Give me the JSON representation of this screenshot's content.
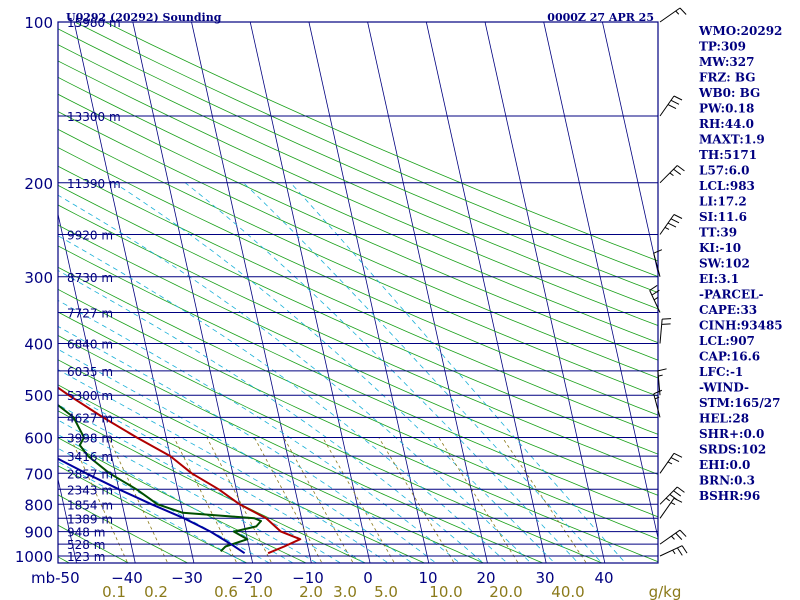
{
  "title_left": "U0292 (20292) Sounding",
  "title_right": "0000Z 27 APR 25",
  "chart_data": {
    "type": "line",
    "chart_kind": "skew-T log-p sounding",
    "p_range": [
      100,
      1000
    ],
    "t_range": [
      -50,
      50
    ],
    "pressure_ticks": [
      100,
      200,
      300,
      400,
      500,
      600,
      700,
      800,
      900,
      1000
    ],
    "temp_ticks": [
      -50,
      -40,
      -30,
      -20,
      -10,
      0,
      10,
      20,
      30,
      40
    ],
    "temp_tick_labels": [
      "mb-50",
      "−40",
      "−30",
      "−20",
      "−10",
      "0",
      "10",
      "20",
      "30",
      "40"
    ],
    "mixing_ratio_labels": [
      {
        "label": "0.1",
        "w": 0.1
      },
      {
        "label": "0.2",
        "w": 0.2
      },
      {
        "label": "0.6",
        "w": 0.6
      },
      {
        "label": "1.0",
        "w": 1.0
      },
      {
        "label": "2.0",
        "w": 2.0
      },
      {
        "label": "3.0",
        "w": 3.0
      },
      {
        "label": "5.0",
        "w": 5.0
      },
      {
        "label": "10.0",
        "w": 10.0
      },
      {
        "label": "20.0",
        "w": 20.0
      },
      {
        "label": "40.0",
        "w": 40.0
      },
      {
        "label": "g/kg",
        "w": null
      }
    ],
    "height_levels": [
      {
        "p": 100,
        "label": "15980 m"
      },
      {
        "p": 150,
        "label": "13300 m"
      },
      {
        "p": 200,
        "label": "11390 m"
      },
      {
        "p": 250,
        "label": "9920 m"
      },
      {
        "p": 300,
        "label": "8730 m"
      },
      {
        "p": 350,
        "label": "7727 m"
      },
      {
        "p": 400,
        "label": "6840 m"
      },
      {
        "p": 450,
        "label": "6035 m"
      },
      {
        "p": 500,
        "label": "5300 m"
      },
      {
        "p": 550,
        "label": "4627 m"
      },
      {
        "p": 600,
        "label": "3998 m"
      },
      {
        "p": 650,
        "label": "3416 m"
      },
      {
        "p": 700,
        "label": "2857 m"
      },
      {
        "p": 750,
        "label": "2343 m"
      },
      {
        "p": 800,
        "label": "1854 m"
      },
      {
        "p": 850,
        "label": "1389 m"
      },
      {
        "p": 900,
        "label": "948 m"
      },
      {
        "p": 950,
        "label": "528 m"
      },
      {
        "p": 1000,
        "label": "123 m"
      }
    ],
    "series": [
      {
        "role": "temperature",
        "color": "#b00000",
        "points": [
          [
            988,
            -17
          ],
          [
            960,
            -14
          ],
          [
            930,
            -11
          ],
          [
            900,
            -14
          ],
          [
            875,
            -15
          ],
          [
            850,
            -16
          ],
          [
            800,
            -20
          ],
          [
            750,
            -23
          ],
          [
            700,
            -27
          ],
          [
            650,
            -30
          ],
          [
            600,
            -35
          ],
          [
            550,
            -40
          ],
          [
            500,
            -45
          ],
          [
            450,
            -50
          ],
          [
            400,
            -56
          ],
          [
            350,
            -61
          ],
          [
            320,
            -65
          ],
          [
            300,
            -66
          ],
          [
            280,
            -63
          ],
          [
            250,
            -55
          ],
          [
            220,
            -47
          ],
          [
            200,
            -42
          ],
          [
            180,
            -40
          ],
          [
            150,
            -38
          ],
          [
            100,
            -42
          ]
        ]
      },
      {
        "role": "dewpoint",
        "color": "#005000",
        "points": [
          [
            980,
            -25
          ],
          [
            960,
            -24
          ],
          [
            930,
            -20
          ],
          [
            900,
            -22
          ],
          [
            880,
            -18
          ],
          [
            860,
            -17
          ],
          [
            850,
            -18
          ],
          [
            830,
            -30
          ],
          [
            800,
            -34
          ],
          [
            750,
            -37
          ],
          [
            700,
            -41
          ],
          [
            650,
            -44
          ],
          [
            620,
            -45
          ],
          [
            600,
            -44
          ],
          [
            550,
            -45
          ],
          [
            500,
            -49
          ],
          [
            450,
            -54
          ],
          [
            400,
            -60
          ],
          [
            350,
            -65
          ],
          [
            320,
            -70
          ],
          [
            300,
            -72
          ],
          [
            270,
            -69
          ],
          [
            250,
            -64
          ],
          [
            220,
            -59
          ],
          [
            200,
            -54
          ],
          [
            185,
            -56
          ],
          [
            150,
            -52
          ],
          [
            100,
            -55
          ]
        ]
      },
      {
        "role": "parcel",
        "color": "#0000a0",
        "points": [
          [
            988,
            -21
          ],
          [
            950,
            -23
          ],
          [
            900,
            -26
          ],
          [
            850,
            -30
          ],
          [
            800,
            -35
          ],
          [
            750,
            -40
          ],
          [
            700,
            -45
          ],
          [
            650,
            -50
          ],
          [
            600,
            -55
          ],
          [
            550,
            -60
          ],
          [
            500,
            -66
          ],
          [
            450,
            -72
          ],
          [
            400,
            -78
          ],
          [
            350,
            -84
          ],
          [
            300,
            -91
          ],
          [
            250,
            -98
          ],
          [
            200,
            -104
          ],
          [
            150,
            -108
          ],
          [
            110,
            -109
          ]
        ]
      }
    ],
    "wind_barbs": [
      {
        "p": 1000,
        "speed": 25,
        "dir": 330
      },
      {
        "p": 950,
        "speed": 25,
        "dir": 320
      },
      {
        "p": 850,
        "speed": 15,
        "dir": 300
      },
      {
        "p": 800,
        "speed": 35,
        "dir": 310
      },
      {
        "p": 700,
        "speed": 25,
        "dir": 300
      },
      {
        "p": 550,
        "speed": 15,
        "dir": 250
      },
      {
        "p": 500,
        "speed": 15,
        "dir": 260
      },
      {
        "p": 400,
        "speed": 20,
        "dir": 270
      },
      {
        "p": 350,
        "speed": 25,
        "dir": 240
      },
      {
        "p": 300,
        "speed": 10,
        "dir": 250
      },
      {
        "p": 250,
        "speed": 35,
        "dir": 300
      },
      {
        "p": 200,
        "speed": 25,
        "dir": 310
      },
      {
        "p": 150,
        "speed": 30,
        "dir": 300
      },
      {
        "p": 100,
        "speed": 15,
        "dir": 320
      }
    ]
  },
  "indices": [
    "WMO:20292",
    "TP:309",
    "MW:327",
    "FRZ: BG",
    "WB0: BG",
    "PW:0.18",
    "RH:44.0",
    "MAXT:1.9",
    "TH:5171",
    "L57:6.0",
    "LCL:983",
    "LI:17.2",
    "SI:11.6",
    "TT:39",
    "KI:-10",
    "SW:102",
    "EI:3.1",
    "-PARCEL-",
    "CAPE:33",
    "CINH:93485",
    "LCL:907",
    "CAP:16.6",
    "LFC:-1",
    "-WIND-",
    "STM:165/27",
    "HEL:28",
    "SHR+:0.0",
    "SRDS:102",
    "EHI:0.0",
    "BRN:0.3",
    "BSHR:96"
  ],
  "colors": {
    "frame": "#000080",
    "isobar": "#000080",
    "isotherm": "#000080",
    "dry_adiabat": "#1aa01a",
    "moist_adiabat": "#1ab0d8",
    "mixing_ratio": "#8b7a1a",
    "temperature": "#b00000",
    "dewpoint": "#005000",
    "parcel": "#0000a0"
  }
}
